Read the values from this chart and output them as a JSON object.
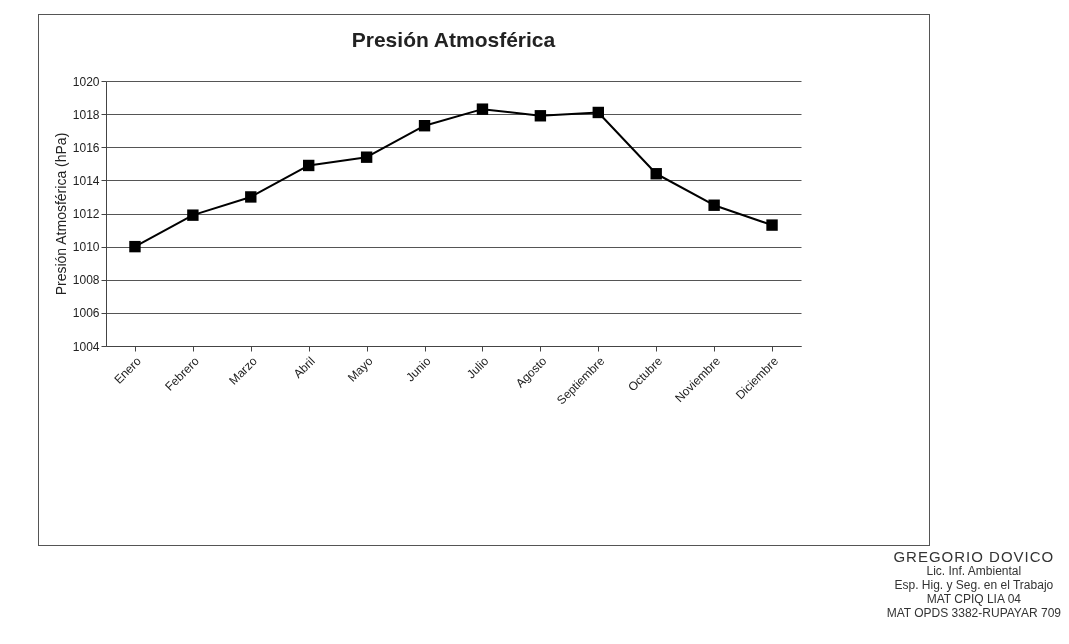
{
  "chart_data": {
    "type": "line",
    "title": "Presión Atmosférica",
    "ylabel": "Presión Atmosférica (hPa)",
    "categories": [
      "Enero",
      "Febrero",
      "Marzo",
      "Abril",
      "Mayo",
      "Junio",
      "Julio",
      "Agosto",
      "Septiembre",
      "Octubre",
      "Noviembre",
      "Diciembre"
    ],
    "series": [
      {
        "color": "#000000",
        "values": [
          1010,
          1011.9,
          1013,
          1014.9,
          1015.4,
          1017.3,
          1018.3,
          1017.9,
          1018.1,
          1014.4,
          1012.5,
          1011.3
        ]
      }
    ],
    "ylim": [
      1004,
      1020
    ],
    "yticks": [
      1004,
      1006,
      1008,
      1010,
      1012,
      1014,
      1016,
      1018,
      1020
    ],
    "grid": "y",
    "marker": "square",
    "line_style": "solid",
    "legend": false,
    "annotations": [
      "GREGORIO DOVICO",
      "Lic. Inf. Ambiental",
      "Esp. Hig. y Seg. en el Trabajo",
      "MAT CPIQ LIA 04",
      "MAT OPDS 3382-RUPAYAR 709"
    ]
  }
}
